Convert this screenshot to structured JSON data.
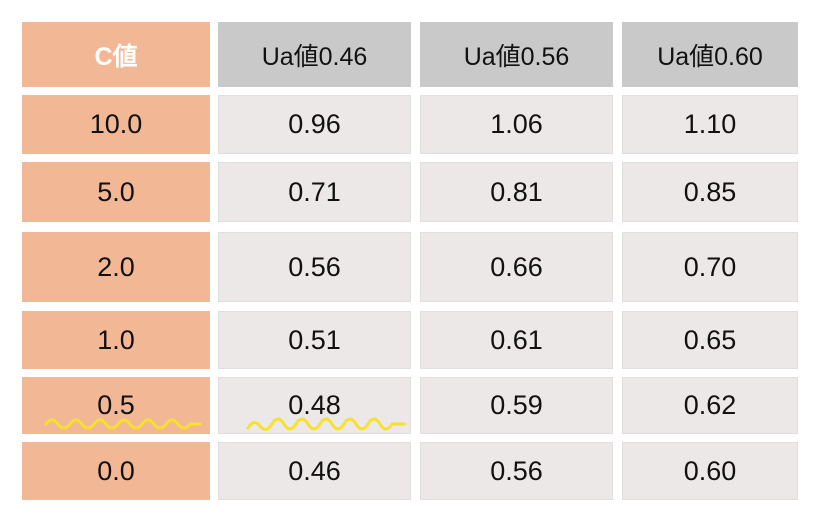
{
  "table": {
    "header": [
      "C値",
      "Ua値0.46",
      "Ua値0.56",
      "Ua値0.60"
    ],
    "rows": [
      [
        "10.0",
        "0.96",
        "1.06",
        "1.10"
      ],
      [
        "5.0",
        "0.71",
        "0.81",
        "0.85"
      ],
      [
        "2.0",
        "0.56",
        "0.66",
        "0.70"
      ],
      [
        "1.0",
        "0.51",
        "0.61",
        "0.65"
      ],
      [
        "0.5",
        "0.48",
        "0.59",
        "0.62"
      ],
      [
        "0.0",
        "0.46",
        "0.56",
        "0.60"
      ]
    ]
  }
}
